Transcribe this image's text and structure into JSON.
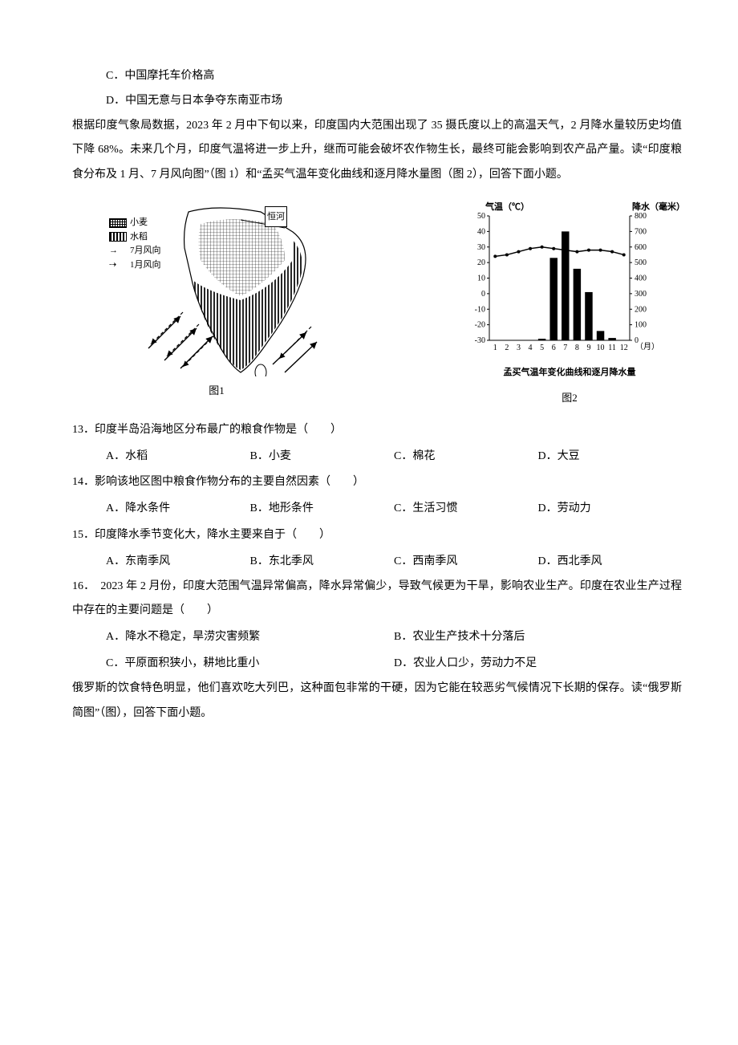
{
  "q12_options": {
    "c": "C．中国摩托车价格高",
    "d": "D．中国无意与日本争夺东南亚市场"
  },
  "passage2": "根据印度气象局数据，2023 年 2 月中下旬以来，印度国内大范围出现了 35 摄氏度以上的高温天气，2 月降水量较历史均值下降 68%。未来几个月，印度气温将进一步上升，继而可能会破坏农作物生长，最终可能会影响到农产品产量。读“印度粮食分布及 1 月、7 月风向图”（图 1）和“孟买气温年变化曲线和逐月降水量图（图 2），回答下面小题。",
  "figure1": {
    "legend": {
      "wheat": "小麦",
      "rice": "水稻",
      "july": "7月风向",
      "january": "1月风向"
    },
    "river": "恒河",
    "caption": "图1",
    "wheat_pattern_color": "#000000",
    "rice_pattern_color": "#000000",
    "map_outline": "India peninsula outline with grid fill regions, diagonal wind arrows (solid NE-to-SW for July, dashed SW-to-NE for January)",
    "arrow_solid": true,
    "arrow_dashed": true
  },
  "figure2": {
    "title_left": "气温（℃）",
    "title_right": "降水（毫米）",
    "bottom_caption": "孟买气温年变化曲线和逐月降水量",
    "caption": "图2",
    "temp_axis": {
      "min": -30,
      "max": 50,
      "step": 10,
      "ticks": [
        -30,
        -20,
        -10,
        0,
        10,
        20,
        30,
        40,
        50
      ]
    },
    "precip_axis": {
      "min": 0,
      "max": 800,
      "step": 100,
      "ticks": [
        0,
        100,
        200,
        300,
        400,
        500,
        600,
        700,
        800
      ]
    },
    "x_labels": [
      1,
      2,
      3,
      4,
      5,
      6,
      7,
      8,
      9,
      10,
      11,
      12
    ],
    "x_unit": "（月）",
    "temperature_values": [
      24,
      25,
      27,
      29,
      30,
      29,
      28,
      27,
      28,
      28,
      27,
      25
    ],
    "precipitation_values": [
      0,
      0,
      0,
      0,
      10,
      530,
      700,
      460,
      310,
      60,
      15,
      0
    ],
    "bar_color": "#000000",
    "line_color": "#000000",
    "background": "#ffffff",
    "axis_color": "#000000",
    "font_size_axis": 10
  },
  "q13": {
    "stem": "13．印度半岛沿海地区分布最广的粮食作物是（　　）",
    "a": "A．水稻",
    "b": "B．小麦",
    "c": "C．棉花",
    "d": "D．大豆"
  },
  "q14": {
    "stem": "14．影响该地区图中粮食作物分布的主要自然因素（　　）",
    "a": "A．降水条件",
    "b": "B．地形条件",
    "c": "C．生活习惯",
    "d": "D．劳动力"
  },
  "q15": {
    "stem": "15．印度降水季节变化大，降水主要来自于（　　）",
    "a": "A．东南季风",
    "b": "B．东北季风",
    "c": "C．西南季风",
    "d": "D．西北季风"
  },
  "q16": {
    "stem": "16．　2023 年 2 月份，印度大范围气温异常偏高，降水异常偏少，导致气候更为干旱，影响农业生产。印度在农业生产过程中存在的主要问题是（　　）",
    "a": "A．降水不稳定，旱涝灾害频繁",
    "b": "B．农业生产技术十分落后",
    "c": "C．平原面积狭小，耕地比重小",
    "d": "D．农业人口少，劳动力不足"
  },
  "passage3": "俄罗斯的饮食特色明显，他们喜欢吃大列巴，这种面包非常的干硬，因为它能在较恶劣气候情况下长期的保存。读“俄罗斯简图”（图），回答下面小题。"
}
